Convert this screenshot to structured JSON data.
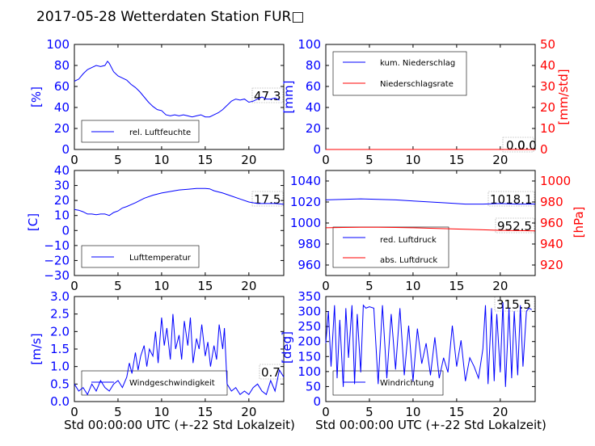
{
  "title": "2017-05-28 Wetterdaten Station FUR□",
  "colors": {
    "primary": "#0000ff",
    "secondary": "#ff0000",
    "annotation_box": "#aaaaaa"
  },
  "chart_data": [
    {
      "type": "line",
      "id": "humidity",
      "xlim": [
        0,
        24
      ],
      "ylim": [
        0,
        100
      ],
      "xticks": [
        "0",
        "5",
        "10",
        "15",
        "20"
      ],
      "yticks": [
        "0",
        "20",
        "40",
        "60",
        "80",
        "100"
      ],
      "ylabel": "[%]",
      "xlabel": "",
      "legend": {
        "placement": "lower-left",
        "entries": [
          "rel. Luftfeuchte"
        ]
      },
      "annotation": "47.3",
      "series": [
        {
          "name": "rel. Luftfeuchte",
          "color": "#0000ff",
          "x": [
            0,
            0.5,
            1,
            1.5,
            2,
            2.5,
            3,
            3.5,
            3.8,
            4,
            4.5,
            5,
            5.5,
            6,
            6.5,
            7,
            7.5,
            8,
            8.5,
            9,
            9.5,
            10,
            10.5,
            11,
            11.5,
            12,
            12.5,
            13,
            13.5,
            14,
            14.5,
            15,
            15.5,
            16,
            16.5,
            17,
            17.5,
            18,
            18.5,
            19,
            19.5,
            20,
            20.5,
            21,
            21.5,
            22,
            22.5,
            23,
            23.5
          ],
          "y": [
            65,
            67,
            72,
            76,
            78,
            80,
            79,
            80,
            84,
            82,
            74,
            70,
            68,
            66,
            62,
            59,
            55,
            50,
            45,
            41,
            38,
            37,
            33,
            32,
            33,
            32,
            33,
            32,
            31,
            32,
            33,
            31,
            31,
            33,
            35,
            38,
            42,
            46,
            48,
            47,
            48,
            45,
            46,
            48,
            50,
            48,
            48,
            49,
            47
          ]
        }
      ]
    },
    {
      "type": "line",
      "id": "precip",
      "xlim": [
        0,
        24
      ],
      "ylim": [
        0,
        100
      ],
      "ylim_right": [
        0,
        50
      ],
      "xticks": [
        "0",
        "5",
        "10",
        "15",
        "20"
      ],
      "yticks": [
        "0",
        "20",
        "40",
        "60",
        "80",
        "100"
      ],
      "yticks_right": [
        "0",
        "10",
        "20",
        "30",
        "40",
        "50"
      ],
      "ylabel": "[mm]",
      "ylabel_right": "[mm/std]",
      "xlabel": "",
      "legend": {
        "placement": "upper-left",
        "entries": [
          "kum. Niederschlag",
          "Niederschlagsrate"
        ]
      },
      "annotations": [
        "0.0",
        "0.0"
      ],
      "series": [
        {
          "name": "kum. Niederschlag",
          "color": "#0000ff",
          "x": [
            0,
            24
          ],
          "y": [
            0,
            0
          ]
        },
        {
          "name": "Niederschlagsrate",
          "color": "#ff0000",
          "x": [
            0,
            24
          ],
          "y": [
            0,
            0
          ]
        }
      ]
    },
    {
      "type": "line",
      "id": "temperature",
      "xlim": [
        0,
        24
      ],
      "ylim": [
        -30,
        40
      ],
      "xticks": [
        "0",
        "5",
        "10",
        "15",
        "20"
      ],
      "yticks": [
        "−30",
        "−20",
        "−10",
        "0",
        "10",
        "20",
        "30",
        "40"
      ],
      "ylabel": "[C]",
      "xlabel": "",
      "legend": {
        "placement": "lower-left",
        "entries": [
          "Lufttemperatur"
        ]
      },
      "annotation": "17.5",
      "series": [
        {
          "name": "Lufttemperatur",
          "color": "#0000ff",
          "x": [
            0,
            0.5,
            1,
            1.5,
            2,
            2.5,
            3,
            3.5,
            4,
            4.5,
            5,
            5.5,
            6,
            7,
            8,
            9,
            10,
            11,
            12,
            13,
            14,
            15,
            15.5,
            16,
            17,
            18,
            19,
            20,
            21,
            22,
            23,
            24
          ],
          "y": [
            14,
            13.5,
            12.5,
            11,
            11,
            10.5,
            11,
            11,
            10,
            12,
            13,
            15,
            16,
            18.5,
            21.5,
            23.5,
            25,
            26,
            27,
            27.5,
            28,
            28,
            27.8,
            26.5,
            25,
            23,
            21,
            19,
            18,
            18,
            18,
            17.5
          ]
        }
      ]
    },
    {
      "type": "line",
      "id": "pressure",
      "xlim": [
        0,
        24
      ],
      "ylim": [
        950,
        1050
      ],
      "ylim_right": [
        910,
        1010
      ],
      "xticks": [
        "0",
        "5",
        "10",
        "15",
        "20"
      ],
      "yticks": [
        "960",
        "980",
        "1000",
        "1020",
        "1040"
      ],
      "yticks_right": [
        "920",
        "940",
        "960",
        "980",
        "1000"
      ],
      "ylabel": "",
      "ylabel_right": "[hPa]",
      "xlabel": "",
      "legend": {
        "placement": "lower-left",
        "entries": [
          "red. Luftdruck",
          "abs. Luftdruck"
        ]
      },
      "annotations": [
        "1018.1",
        "952.5"
      ],
      "series": [
        {
          "name": "red. Luftdruck",
          "color": "#0000ff",
          "x": [
            0,
            2,
            4,
            6,
            8,
            10,
            12,
            14,
            16,
            18,
            20,
            22,
            24
          ],
          "y": [
            1022,
            1022.5,
            1023,
            1022.5,
            1022,
            1021,
            1020,
            1019,
            1018,
            1018,
            1018.5,
            1018,
            1018.1
          ]
        },
        {
          "name": "abs. Luftdruck",
          "color": "#ff0000",
          "x": [
            0,
            2,
            4,
            6,
            8,
            10,
            12,
            14,
            16,
            18,
            20,
            22,
            24
          ],
          "y": [
            955.5,
            955.8,
            956,
            956,
            955.8,
            955.5,
            955,
            954.5,
            954,
            953.5,
            953,
            952.8,
            952.5
          ]
        }
      ]
    },
    {
      "type": "line",
      "id": "wind",
      "xlim": [
        0,
        24
      ],
      "ylim": [
        0,
        3
      ],
      "xticks": [
        "0",
        "5",
        "10",
        "15",
        "20"
      ],
      "yticks": [
        "0.0",
        "0.5",
        "1.0",
        "1.5",
        "2.0",
        "2.5",
        "3.0"
      ],
      "ylabel": "[m/s]",
      "xlabel": "Std 00:00:00 UTC (+-22 Std Lokalzeit)",
      "legend": {
        "placement": "lower-left",
        "entries": [
          "Windgeschwindigkeit"
        ]
      },
      "annotation": "0.7",
      "series": [
        {
          "name": "Windgeschwindigkeit",
          "color": "#0000ff",
          "x": [
            0,
            0.5,
            1,
            1.5,
            2,
            2.5,
            3,
            3.5,
            4,
            4.5,
            5,
            5.5,
            6,
            6.3,
            6.6,
            7,
            7.3,
            7.6,
            8,
            8.3,
            8.6,
            9,
            9.3,
            9.6,
            10,
            10.3,
            10.6,
            11,
            11.3,
            11.6,
            12,
            12.3,
            12.6,
            13,
            13.3,
            13.6,
            14,
            14.3,
            14.6,
            15,
            15.3,
            15.6,
            16,
            16.3,
            16.6,
            17,
            17.2,
            17.5,
            18,
            18.5,
            19,
            19.5,
            20,
            20.5,
            21,
            21.5,
            22,
            22.5,
            23,
            23.5,
            24
          ],
          "y": [
            0.5,
            0.3,
            0.4,
            0.2,
            0.5,
            0.3,
            0.6,
            0.4,
            0.3,
            0.5,
            0.6,
            0.4,
            0.7,
            1.1,
            0.8,
            1.4,
            0.9,
            1.3,
            1.6,
            1.0,
            1.5,
            1.3,
            2.0,
            1.1,
            2.4,
            1.6,
            2.1,
            1.2,
            2.5,
            1.5,
            1.9,
            1.2,
            2.3,
            1.6,
            2.4,
            1.1,
            1.8,
            1.5,
            2.2,
            1.3,
            1.7,
            1.0,
            1.6,
            1.2,
            2.2,
            1.5,
            2.1,
            0.5,
            0.3,
            0.4,
            0.2,
            0.3,
            0.2,
            0.4,
            0.5,
            0.3,
            0.2,
            0.6,
            0.3,
            0.9,
            0.7
          ]
        }
      ]
    },
    {
      "type": "line",
      "id": "winddir",
      "xlim": [
        0,
        24
      ],
      "ylim": [
        0,
        360
      ],
      "xticks": [
        "0",
        "5",
        "10",
        "15",
        "20"
      ],
      "yticks": [
        "0",
        "50",
        "100",
        "150",
        "200",
        "250",
        "300",
        "350"
      ],
      "ylabel": "[deg]",
      "xlabel": "Std 00:00:00 UTC (+-22 Std Lokalzeit)",
      "legend": {
        "placement": "lower-left",
        "entries": [
          "Windrichtung"
        ]
      },
      "annotation": "315.5",
      "series": [
        {
          "name": "Windrichtung",
          "color": "#0000ff",
          "x": [
            0,
            0.3,
            0.6,
            1,
            1.3,
            1.6,
            2,
            2.3,
            2.6,
            3,
            3.3,
            3.6,
            4,
            4.3,
            4.6,
            5,
            5.5,
            6,
            6.5,
            7,
            7.5,
            8,
            8.5,
            9,
            9.5,
            10,
            10.5,
            11,
            11.5,
            12,
            12.5,
            13,
            13.5,
            14,
            14.5,
            15,
            15.5,
            16,
            16.5,
            17,
            17.5,
            18,
            18.3,
            18.6,
            19,
            19.3,
            19.6,
            20,
            20.3,
            20.6,
            21,
            21.3,
            21.6,
            22,
            22.3,
            22.6,
            23,
            23.3,
            23.6
          ],
          "y": [
            200,
            310,
            120,
            330,
            80,
            280,
            50,
            320,
            150,
            330,
            60,
            300,
            100,
            330,
            320,
            325,
            320,
            60,
            330,
            80,
            300,
            110,
            320,
            90,
            260,
            70,
            250,
            130,
            200,
            90,
            220,
            80,
            150,
            100,
            260,
            120,
            210,
            70,
            150,
            120,
            80,
            180,
            330,
            60,
            320,
            70,
            300,
            100,
            340,
            50,
            320,
            80,
            310,
            90,
            330,
            120,
            310,
            320,
            315
          ]
        }
      ]
    }
  ]
}
